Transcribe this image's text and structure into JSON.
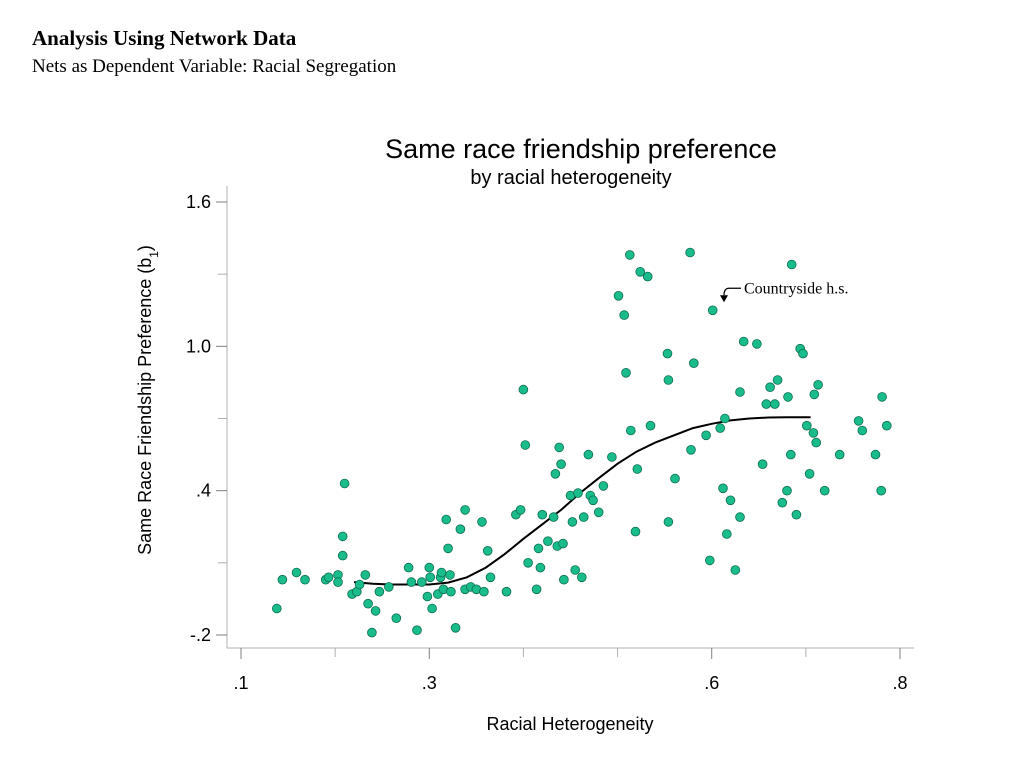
{
  "slide": {
    "title": "Analysis Using Network Data",
    "subtitle": "Nets as Dependent Variable: Racial Segregation"
  },
  "colors": {
    "point_fill": "#1abc8c",
    "point_stroke": "#0d6e50",
    "fit_line": "#000000"
  },
  "chart_data": {
    "type": "scatter",
    "title": "Same race friendship preference",
    "subtitle": "by racial heterogeneity",
    "xlabel": "Racial Heterogeneity",
    "ylabel": "Same Race Friendship Preference (b1)",
    "xlim": [
      0.1,
      0.8
    ],
    "ylim": [
      -0.2,
      1.6
    ],
    "xticks": [
      0.1,
      0.3,
      0.6,
      0.8
    ],
    "xtick_labels": [
      ".1",
      ".3",
      ".6",
      ".8"
    ],
    "x_minor_ticks": [
      0.2,
      0.4,
      0.5,
      0.7
    ],
    "yticks": [
      -0.2,
      0.4,
      1.0,
      1.6
    ],
    "ytick_labels": [
      "-.2",
      ".4",
      "1.0",
      "1.6"
    ],
    "y_minor_ticks": [
      0.1,
      0.7,
      1.3
    ],
    "grid": false,
    "annotation": {
      "text": "Countryside h.s.",
      "x": 0.612,
      "y": 1.15
    },
    "fit_line": {
      "name": "",
      "x": [
        0.22,
        0.24,
        0.26,
        0.28,
        0.3,
        0.32,
        0.34,
        0.36,
        0.38,
        0.4,
        0.42,
        0.44,
        0.46,
        0.48,
        0.5,
        0.52,
        0.54,
        0.56,
        0.58,
        0.6,
        0.62,
        0.64,
        0.66,
        0.68,
        0.7,
        0.705
      ],
      "y": [
        0.02,
        0.013,
        0.01,
        0.01,
        0.01,
        0.018,
        0.04,
        0.08,
        0.136,
        0.2,
        0.26,
        0.32,
        0.39,
        0.452,
        0.512,
        0.562,
        0.6,
        0.63,
        0.66,
        0.678,
        0.692,
        0.7,
        0.704,
        0.705,
        0.705,
        0.705
      ]
    },
    "series": [
      {
        "name": "",
        "points": [
          {
            "x": 0.138,
            "y": -0.09
          },
          {
            "x": 0.144,
            "y": 0.03
          },
          {
            "x": 0.159,
            "y": 0.06
          },
          {
            "x": 0.168,
            "y": 0.03
          },
          {
            "x": 0.19,
            "y": 0.03
          },
          {
            "x": 0.193,
            "y": 0.04
          },
          {
            "x": 0.203,
            "y": 0.05
          },
          {
            "x": 0.203,
            "y": 0.02
          },
          {
            "x": 0.208,
            "y": 0.21
          },
          {
            "x": 0.208,
            "y": 0.13
          },
          {
            "x": 0.21,
            "y": 0.43
          },
          {
            "x": 0.218,
            "y": -0.03
          },
          {
            "x": 0.223,
            "y": -0.02
          },
          {
            "x": 0.226,
            "y": 0.01
          },
          {
            "x": 0.235,
            "y": -0.07
          },
          {
            "x": 0.232,
            "y": 0.05
          },
          {
            "x": 0.239,
            "y": -0.19
          },
          {
            "x": 0.243,
            "y": -0.1
          },
          {
            "x": 0.247,
            "y": -0.02
          },
          {
            "x": 0.257,
            "y": 0.0
          },
          {
            "x": 0.265,
            "y": -0.13
          },
          {
            "x": 0.278,
            "y": 0.08
          },
          {
            "x": 0.281,
            "y": 0.02
          },
          {
            "x": 0.287,
            "y": -0.18
          },
          {
            "x": 0.292,
            "y": 0.02
          },
          {
            "x": 0.298,
            "y": -0.04
          },
          {
            "x": 0.3,
            "y": 0.08
          },
          {
            "x": 0.301,
            "y": 0.04
          },
          {
            "x": 0.303,
            "y": -0.09
          },
          {
            "x": 0.309,
            "y": -0.03
          },
          {
            "x": 0.312,
            "y": 0.04
          },
          {
            "x": 0.313,
            "y": 0.06
          },
          {
            "x": 0.315,
            "y": -0.01
          },
          {
            "x": 0.318,
            "y": 0.28
          },
          {
            "x": 0.32,
            "y": 0.16
          },
          {
            "x": 0.322,
            "y": 0.05
          },
          {
            "x": 0.323,
            "y": -0.02
          },
          {
            "x": 0.328,
            "y": -0.17
          },
          {
            "x": 0.333,
            "y": 0.24
          },
          {
            "x": 0.338,
            "y": -0.01
          },
          {
            "x": 0.338,
            "y": 0.32
          },
          {
            "x": 0.344,
            "y": 0.0
          },
          {
            "x": 0.35,
            "y": -0.01
          },
          {
            "x": 0.356,
            "y": 0.27
          },
          {
            "x": 0.358,
            "y": -0.02
          },
          {
            "x": 0.362,
            "y": 0.15
          },
          {
            "x": 0.365,
            "y": 0.04
          },
          {
            "x": 0.382,
            "y": -0.02
          },
          {
            "x": 0.392,
            "y": 0.3
          },
          {
            "x": 0.397,
            "y": 0.32
          },
          {
            "x": 0.4,
            "y": 0.82
          },
          {
            "x": 0.402,
            "y": 0.59
          },
          {
            "x": 0.405,
            "y": 0.1
          },
          {
            "x": 0.414,
            "y": -0.01
          },
          {
            "x": 0.416,
            "y": 0.16
          },
          {
            "x": 0.418,
            "y": 0.08
          },
          {
            "x": 0.42,
            "y": 0.3
          },
          {
            "x": 0.426,
            "y": 0.19
          },
          {
            "x": 0.432,
            "y": 0.29
          },
          {
            "x": 0.436,
            "y": 0.17
          },
          {
            "x": 0.434,
            "y": 0.47
          },
          {
            "x": 0.438,
            "y": 0.58
          },
          {
            "x": 0.44,
            "y": 0.51
          },
          {
            "x": 0.442,
            "y": 0.18
          },
          {
            "x": 0.443,
            "y": 0.03
          },
          {
            "x": 0.45,
            "y": 0.38
          },
          {
            "x": 0.452,
            "y": 0.27
          },
          {
            "x": 0.455,
            "y": 0.07
          },
          {
            "x": 0.458,
            "y": 0.39
          },
          {
            "x": 0.462,
            "y": 0.04
          },
          {
            "x": 0.464,
            "y": 0.29
          },
          {
            "x": 0.469,
            "y": 0.55
          },
          {
            "x": 0.471,
            "y": 0.38
          },
          {
            "x": 0.474,
            "y": 0.36
          },
          {
            "x": 0.48,
            "y": 0.31
          },
          {
            "x": 0.485,
            "y": 0.42
          },
          {
            "x": 0.494,
            "y": 0.54
          },
          {
            "x": 0.501,
            "y": 1.21
          },
          {
            "x": 0.507,
            "y": 1.13
          },
          {
            "x": 0.509,
            "y": 0.89
          },
          {
            "x": 0.513,
            "y": 1.38
          },
          {
            "x": 0.514,
            "y": 0.65
          },
          {
            "x": 0.519,
            "y": 0.23
          },
          {
            "x": 0.521,
            "y": 0.49
          },
          {
            "x": 0.524,
            "y": 1.31
          },
          {
            "x": 0.532,
            "y": 1.29
          },
          {
            "x": 0.535,
            "y": 0.67
          },
          {
            "x": 0.553,
            "y": 0.97
          },
          {
            "x": 0.554,
            "y": 0.86
          },
          {
            "x": 0.554,
            "y": 0.27
          },
          {
            "x": 0.561,
            "y": 0.45
          },
          {
            "x": 0.577,
            "y": 1.39
          },
          {
            "x": 0.578,
            "y": 0.57
          },
          {
            "x": 0.581,
            "y": 0.93
          },
          {
            "x": 0.594,
            "y": 0.63
          },
          {
            "x": 0.598,
            "y": 0.11
          },
          {
            "x": 0.601,
            "y": 1.15
          },
          {
            "x": 0.609,
            "y": 0.66
          },
          {
            "x": 0.612,
            "y": 0.41
          },
          {
            "x": 0.614,
            "y": 0.7
          },
          {
            "x": 0.616,
            "y": 0.22
          },
          {
            "x": 0.62,
            "y": 0.36
          },
          {
            "x": 0.625,
            "y": 0.07
          },
          {
            "x": 0.63,
            "y": 0.81
          },
          {
            "x": 0.63,
            "y": 0.29
          },
          {
            "x": 0.634,
            "y": 1.02
          },
          {
            "x": 0.648,
            "y": 1.01
          },
          {
            "x": 0.654,
            "y": 0.51
          },
          {
            "x": 0.658,
            "y": 0.76
          },
          {
            "x": 0.662,
            "y": 0.83
          },
          {
            "x": 0.667,
            "y": 0.76
          },
          {
            "x": 0.67,
            "y": 0.86
          },
          {
            "x": 0.675,
            "y": 0.35
          },
          {
            "x": 0.68,
            "y": 0.4
          },
          {
            "x": 0.681,
            "y": 0.79
          },
          {
            "x": 0.684,
            "y": 0.55
          },
          {
            "x": 0.685,
            "y": 1.34
          },
          {
            "x": 0.69,
            "y": 0.3
          },
          {
            "x": 0.694,
            "y": 0.99
          },
          {
            "x": 0.697,
            "y": 0.97
          },
          {
            "x": 0.701,
            "y": 0.67
          },
          {
            "x": 0.704,
            "y": 0.47
          },
          {
            "x": 0.708,
            "y": 0.64
          },
          {
            "x": 0.709,
            "y": 0.8
          },
          {
            "x": 0.711,
            "y": 0.6
          },
          {
            "x": 0.713,
            "y": 0.84
          },
          {
            "x": 0.72,
            "y": 0.4
          },
          {
            "x": 0.736,
            "y": 0.55
          },
          {
            "x": 0.756,
            "y": 0.69
          },
          {
            "x": 0.76,
            "y": 0.65
          },
          {
            "x": 0.774,
            "y": 0.55
          },
          {
            "x": 0.78,
            "y": 0.4
          },
          {
            "x": 0.781,
            "y": 0.79
          },
          {
            "x": 0.786,
            "y": 0.67
          }
        ]
      }
    ]
  }
}
